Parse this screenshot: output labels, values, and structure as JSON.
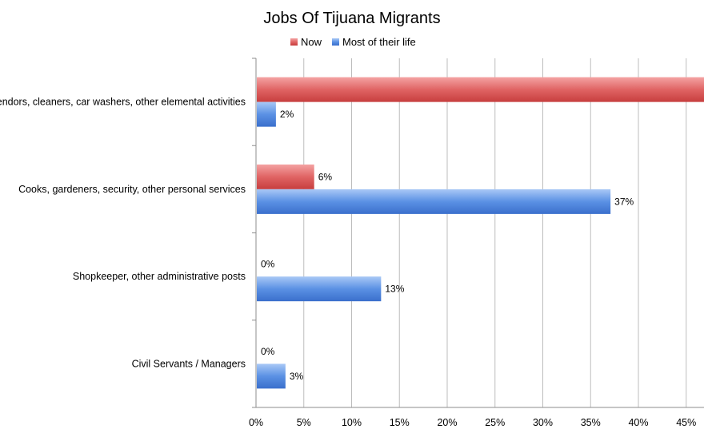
{
  "chart_data": {
    "type": "bar",
    "orientation": "horizontal",
    "title": "Jobs Of Tijuana Migrants",
    "categories": [
      "Vendors, cleaners, car washers, other elemental activities",
      "Cooks, gardeners, security, other personal services",
      "Shopkeeper, other administrative posts",
      "Civil Servants / Managers"
    ],
    "series": [
      {
        "name": "Now",
        "values": [
          47,
          6,
          0,
          0
        ],
        "color": "#d94f4f",
        "labels": [
          "",
          "6%",
          "0%",
          "0%"
        ]
      },
      {
        "name": "Most of their life",
        "values": [
          2,
          37,
          13,
          3
        ],
        "color": "#4a80d9",
        "labels": [
          "2%",
          "37%",
          "13%",
          "3%"
        ]
      }
    ],
    "x_ticks": [
      "0%",
      "5%",
      "10%",
      "15%",
      "20%",
      "25%",
      "30%",
      "35%",
      "40%",
      "45%"
    ],
    "xlim": [
      0,
      47
    ],
    "legend_position": "top",
    "grid": true
  }
}
